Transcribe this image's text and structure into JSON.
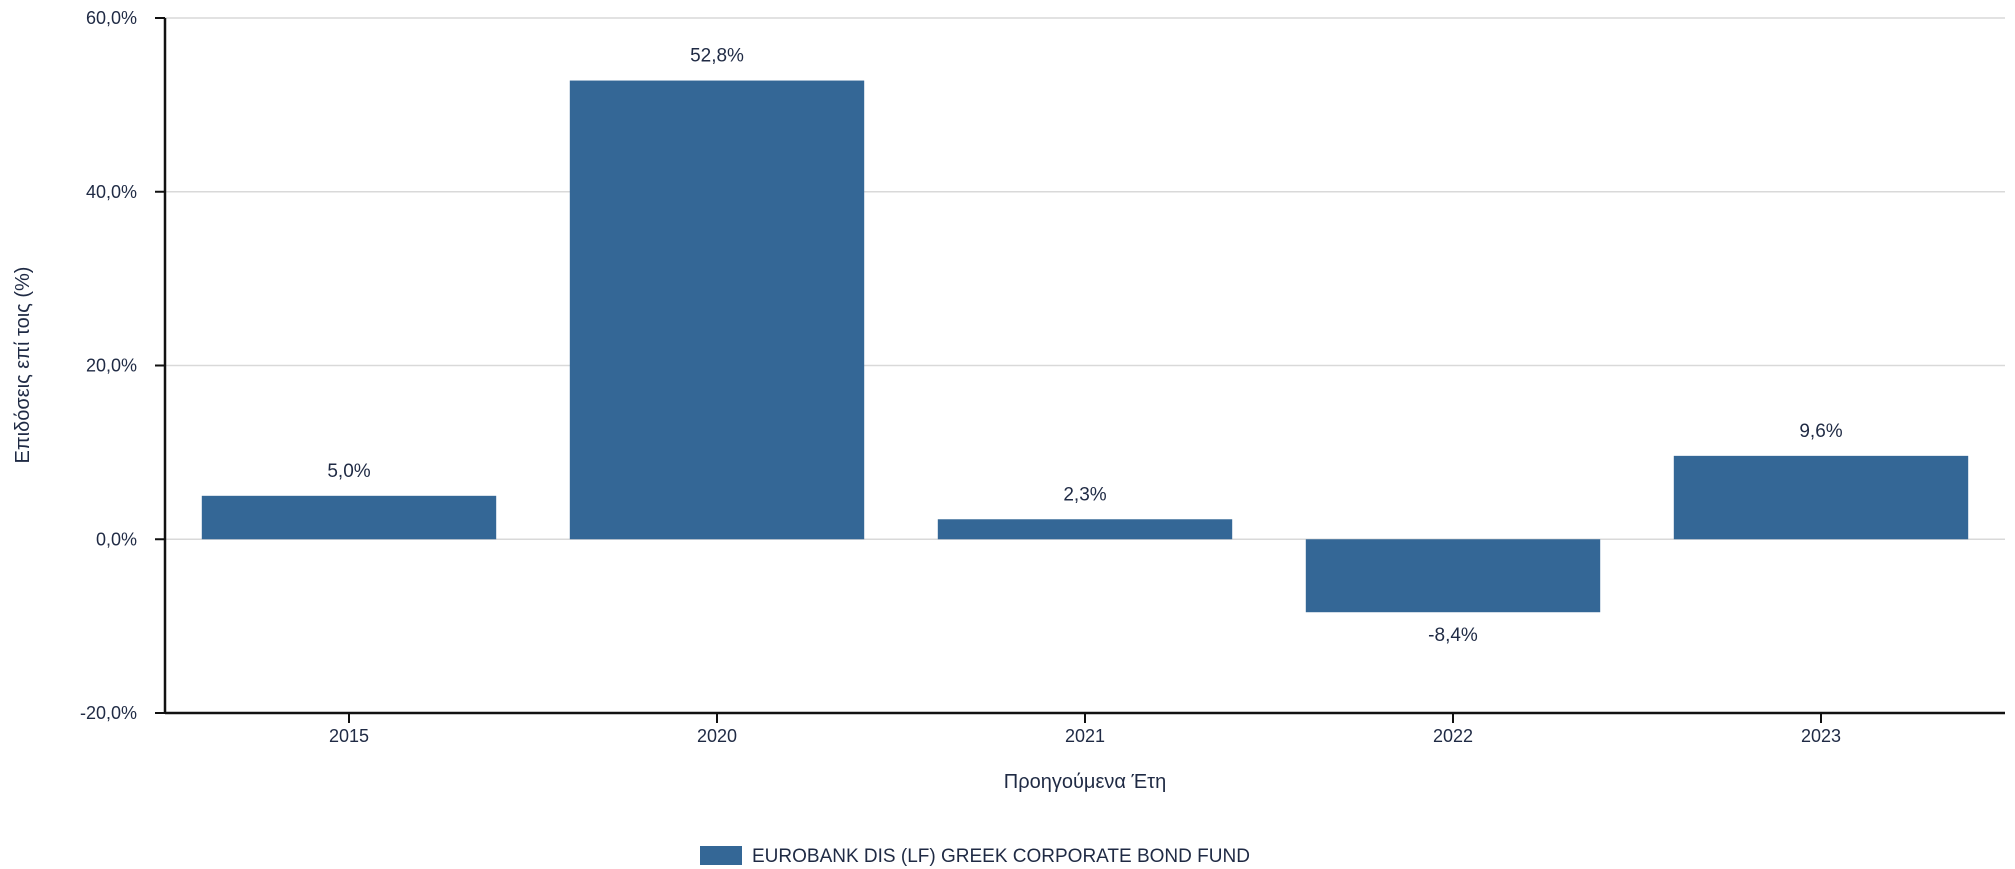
{
  "chart_data": {
    "type": "bar",
    "categories": [
      "2015",
      "2020",
      "2021",
      "2022",
      "2023"
    ],
    "series": [
      {
        "name": "EUROBANK DIS (LF) GREEK CORPORATE BOND FUND",
        "values": [
          5.0,
          52.8,
          2.3,
          -8.4,
          9.6
        ],
        "color": "#346796"
      }
    ],
    "data_labels": [
      "5,0%",
      "52,8%",
      "2,3%",
      "-8,4%",
      "9,6%"
    ],
    "xlabel": "Προηγούμενα Έτη",
    "ylabel": "Επιδόσεις επί τοις (%)",
    "ylim": [
      -20,
      60
    ],
    "yticks": [
      -20,
      0,
      20,
      40,
      60
    ],
    "ytick_labels": [
      "-20,0%",
      "0,0%",
      "20,0%",
      "40,0%",
      "60,0%"
    ],
    "grid": true,
    "legend_position": "bottom-center"
  }
}
